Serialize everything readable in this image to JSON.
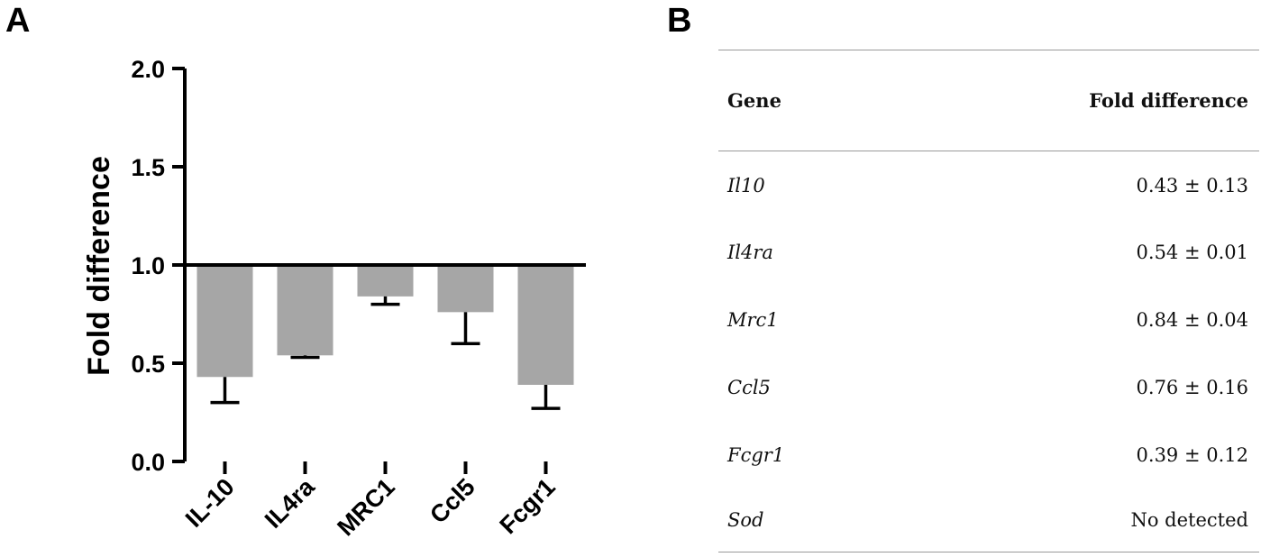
{
  "panels": {
    "a_label": "A",
    "b_label": "B"
  },
  "chart_data": {
    "type": "bar",
    "ylabel": "Fold difference",
    "xlabel": "",
    "ylim": [
      0,
      2
    ],
    "yticks": [
      "0.0",
      "0.5",
      "1.0",
      "1.5",
      "2.0"
    ],
    "baseline": 1.0,
    "categories": [
      "IL-10",
      "IL4ra",
      "MRC1",
      "Ccl5",
      "Fcgr1"
    ],
    "values": [
      0.43,
      0.54,
      0.84,
      0.76,
      0.39
    ],
    "errors": [
      0.13,
      0.01,
      0.04,
      0.16,
      0.12
    ],
    "bar_color": "#a6a6a6"
  },
  "table": {
    "headers": [
      "Gene",
      "Fold difference"
    ],
    "rows": [
      {
        "gene": "Il10",
        "value": "0.43 ± 0.13"
      },
      {
        "gene": "Il4ra",
        "value": "0.54 ± 0.01"
      },
      {
        "gene": "Mrc1",
        "value": "0.84 ± 0.04"
      },
      {
        "gene": "Ccl5",
        "value": "0.76 ± 0.16"
      },
      {
        "gene": "Fcgr1",
        "value": "0.39 ± 0.12"
      },
      {
        "gene": "Sod",
        "value": "No detected"
      }
    ]
  }
}
